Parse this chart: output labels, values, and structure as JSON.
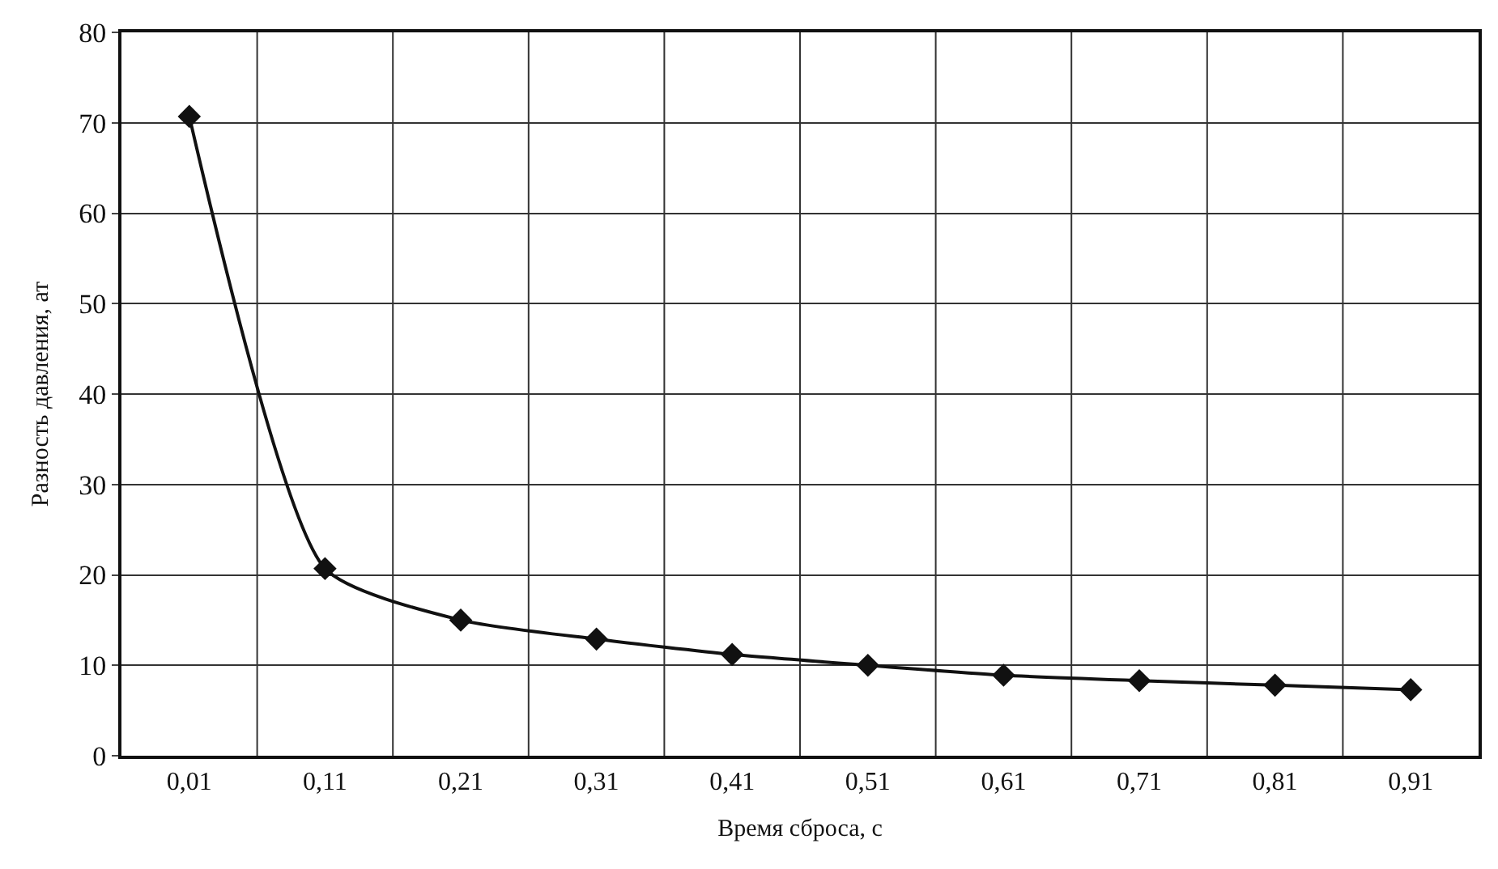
{
  "chart_data": {
    "type": "line",
    "xlabel": "Время сброса, с",
    "ylabel": "Разность давления, ат",
    "categories": [
      "0,01",
      "0,11",
      "0,21",
      "0,31",
      "0,41",
      "0,51",
      "0,61",
      "0,71",
      "0,81",
      "0,91"
    ],
    "series": [
      {
        "color": "#111111",
        "values": [
          70.7,
          20.7,
          15,
          12.9,
          11.2,
          10,
          8.9,
          8.3,
          7.8,
          7.3
        ]
      }
    ],
    "ylim": [
      0,
      80
    ],
    "yticks": [
      0,
      10,
      20,
      30,
      40,
      50,
      60,
      70,
      80
    ],
    "grid": true,
    "legend": false,
    "marker": "diamond",
    "line_style": "solid"
  }
}
